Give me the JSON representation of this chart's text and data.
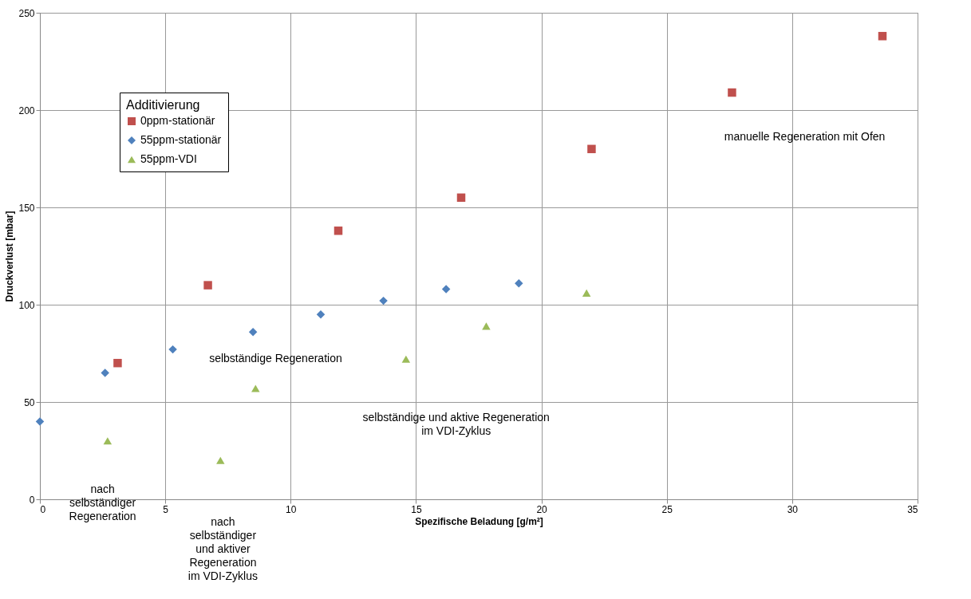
{
  "chart_data": {
    "type": "scatter",
    "xlabel": "Spezifische Beladung [g/m²]",
    "ylabel": "Druckverlust [mbar]",
    "legend_title": "Additivierung",
    "legend": "top left",
    "grid": true,
    "xlim": [
      0,
      35
    ],
    "xticks": [
      0,
      5,
      10,
      15,
      20,
      25,
      30,
      35
    ],
    "ylim": [
      0,
      250
    ],
    "yticks": [
      0,
      50,
      100,
      150,
      200,
      250
    ],
    "series": [
      {
        "name": "0ppm-stationär",
        "color": "#c0504d",
        "marker": "square",
        "x": [
          3.1,
          6.7,
          11.9,
          16.8,
          22.0,
          27.6,
          33.6
        ],
        "values": [
          70,
          110,
          138,
          155,
          180,
          209,
          238
        ]
      },
      {
        "name": "55ppm-stationär",
        "color": "#4f81bd",
        "marker": "diamond",
        "x": [
          0,
          2.6,
          2.7,
          5.3,
          8.5,
          11.2,
          13.7,
          16.2,
          19.1
        ],
        "values": [
          40,
          65,
          null,
          77,
          86,
          95,
          102,
          108,
          111
        ]
      },
      {
        "name": "55ppm-VDI",
        "color": "#9bbb59",
        "marker": "triangle",
        "x": [
          2.7,
          7.2,
          8.6,
          14.6,
          17.8,
          21.8
        ],
        "values": [
          30,
          20,
          57,
          72,
          89,
          106
        ]
      }
    ],
    "annotations": [
      "manuelle Regeneration mit Ofen",
      "selbständige Regeneration",
      "selbständige und aktive Regeneration\nim VDI-Zyklus",
      "nach\nselbständiger\nRegeneration",
      "nach\nselbständiger\nund aktiver\nRegeneration\nim VDI-Zyklus"
    ]
  }
}
